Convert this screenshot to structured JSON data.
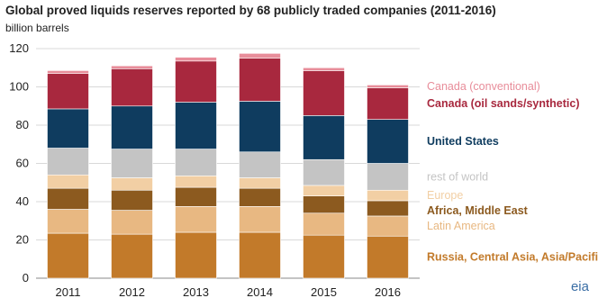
{
  "chart_data": {
    "type": "bar",
    "stacked": true,
    "title": "Global proved liquids reserves reported by 68 publicly traded companies (2011-2016)",
    "subtitle": "billion barrels",
    "xlabel": "",
    "ylabel": "",
    "categories": [
      "2011",
      "2012",
      "2013",
      "2014",
      "2015",
      "2016"
    ],
    "ylim": [
      0,
      120
    ],
    "yticks": [
      0,
      20,
      40,
      60,
      80,
      100,
      120
    ],
    "grid": true,
    "legend_placement": "right",
    "series": [
      {
        "name": "Russia, Central Asia, Asia/Pacific",
        "color": "#c27a2a",
        "bold": true,
        "values": [
          23.5,
          23.0,
          24.0,
          24.0,
          22.5,
          22.0
        ]
      },
      {
        "name": "Latin America",
        "color": "#e8b882",
        "bold": false,
        "values": [
          12.5,
          12.5,
          13.5,
          13.5,
          11.5,
          10.5
        ]
      },
      {
        "name": "Africa, Middle East",
        "color": "#8c5a1f",
        "bold": true,
        "values": [
          11.0,
          10.5,
          10.0,
          9.5,
          9.0,
          8.0
        ]
      },
      {
        "name": "Europe",
        "color": "#f2cfa4",
        "bold": false,
        "values": [
          7.0,
          6.5,
          6.0,
          5.5,
          5.5,
          5.5
        ]
      },
      {
        "name": "rest of world",
        "color": "#c4c4c4",
        "bold": false,
        "values": [
          14.0,
          15.0,
          14.0,
          13.5,
          13.5,
          14.0
        ]
      },
      {
        "name": "United States",
        "color": "#0f3c5f",
        "bold": true,
        "values": [
          20.5,
          22.5,
          24.5,
          26.5,
          23.0,
          23.0
        ]
      },
      {
        "name": "Canada (oil sands/synthetic)",
        "color": "#a8283e",
        "bold": true,
        "values": [
          18.5,
          19.5,
          21.5,
          22.5,
          23.5,
          16.5
        ]
      },
      {
        "name": "Canada (conventional)",
        "color": "#e88d9a",
        "bold": false,
        "values": [
          1.5,
          1.5,
          2.0,
          2.5,
          1.5,
          1.5
        ]
      }
    ]
  },
  "source_logo": "eia"
}
